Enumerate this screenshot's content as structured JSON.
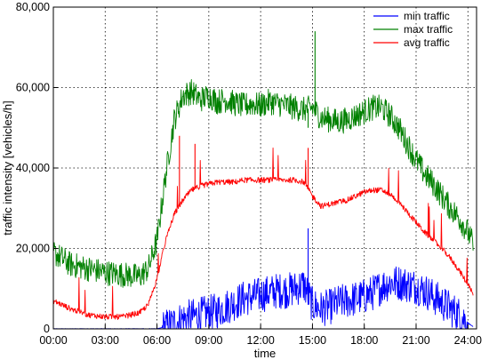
{
  "chart_data": {
    "type": "line",
    "title": "",
    "xlabel": "time",
    "ylabel": "traffic intensity [vehicles/h]",
    "xlim": [
      0,
      24.5
    ],
    "ylim": [
      0,
      80000
    ],
    "x_ticks": [
      0,
      3,
      6,
      9,
      12,
      15,
      18,
      21,
      24
    ],
    "x_tick_labels": [
      "00:00",
      "03:00",
      "06:00",
      "09:00",
      "12:00",
      "15:00",
      "18:00",
      "21:00",
      "24:00"
    ],
    "y_ticks": [
      0,
      20000,
      40000,
      60000,
      80000
    ],
    "y_tick_labels": [
      "0",
      "20,000",
      "40,000",
      "60,000",
      "80,000"
    ],
    "grid": true,
    "legend_position": "top-right",
    "series": [
      {
        "name": "min traffic",
        "color": "#0000ff",
        "x": [
          0,
          1,
          2,
          3,
          4,
          5,
          6,
          6.5,
          7,
          7.5,
          8,
          8.5,
          9,
          9.5,
          10,
          10.5,
          11,
          11.5,
          12,
          12.5,
          13,
          13.5,
          14,
          14.5,
          15,
          15.5,
          16,
          16.5,
          17,
          17.5,
          18,
          18.5,
          19,
          19.5,
          20,
          20.5,
          21,
          21.5,
          22,
          22.5,
          23,
          23.5,
          24,
          24.3
        ],
        "y": [
          0,
          0,
          0,
          0,
          0,
          0,
          0,
          500,
          1500,
          2500,
          3000,
          3500,
          4000,
          4500,
          5500,
          6500,
          7500,
          8000,
          8500,
          9000,
          9500,
          9500,
          10000,
          11000,
          6000,
          5000,
          5500,
          6500,
          7000,
          7500,
          8000,
          9000,
          10500,
          11500,
          11500,
          11000,
          10500,
          9500,
          8000,
          6500,
          5000,
          3500,
          1500,
          500
        ]
      },
      {
        "name": "max traffic",
        "color": "#008000",
        "x": [
          0,
          1,
          2,
          3,
          4,
          5,
          5.5,
          6,
          6.5,
          7,
          7.5,
          8,
          8.5,
          9,
          9.5,
          10,
          10.5,
          11,
          11.5,
          12,
          12.5,
          13,
          13.5,
          14,
          14.5,
          15,
          15.5,
          16,
          16.5,
          17,
          17.5,
          18,
          18.5,
          19,
          19.5,
          20,
          20.5,
          21,
          21.5,
          22,
          22.5,
          23,
          23.5,
          24,
          24.3
        ],
        "y": [
          19000,
          16000,
          15000,
          14000,
          13500,
          13000,
          15000,
          22000,
          38000,
          52000,
          58000,
          59000,
          57000,
          58000,
          56500,
          57000,
          56000,
          55500,
          56000,
          55500,
          56500,
          56000,
          55500,
          55000,
          54500,
          55000,
          52500,
          52000,
          51500,
          52000,
          53000,
          54000,
          55000,
          55000,
          53000,
          50000,
          46000,
          42000,
          38500,
          36000,
          33000,
          30000,
          27500,
          24000,
          21000
        ]
      },
      {
        "name": "avg traffic",
        "color": "#ff0000",
        "x": [
          0,
          1,
          2,
          3,
          4,
          5,
          5.5,
          6,
          6.5,
          7,
          7.5,
          8,
          8.5,
          9,
          9.5,
          10,
          10.5,
          11,
          11.5,
          12,
          12.5,
          13,
          13.5,
          14,
          14.5,
          15,
          15.5,
          16,
          16.5,
          17,
          17.5,
          18,
          18.5,
          19,
          19.5,
          20,
          20.5,
          21,
          21.5,
          22,
          22.5,
          23,
          23.5,
          24,
          24.3
        ],
        "y": [
          7000,
          5000,
          3500,
          3000,
          3000,
          4000,
          6000,
          12500,
          22000,
          28500,
          32000,
          34500,
          35500,
          36000,
          36500,
          36500,
          36500,
          37000,
          37000,
          37000,
          37000,
          37000,
          37000,
          37000,
          36500,
          33000,
          30500,
          31000,
          31500,
          32000,
          33000,
          34000,
          34500,
          34500,
          33500,
          31500,
          29000,
          26500,
          24000,
          22000,
          20000,
          17500,
          14500,
          11000,
          8500
        ]
      }
    ],
    "spikes": [
      {
        "series": "max traffic",
        "x": 15.15,
        "y": 74000
      },
      {
        "series": "min traffic",
        "x": 14.75,
        "y": 25000
      },
      {
        "series": "avg traffic",
        "x": 14.75,
        "y": 45000
      },
      {
        "series": "avg traffic",
        "x": 7.3,
        "y": 48000
      },
      {
        "series": "avg traffic",
        "x": 8.2,
        "y": 46000
      },
      {
        "series": "max traffic",
        "x": 14.75,
        "y": 50000
      }
    ]
  }
}
